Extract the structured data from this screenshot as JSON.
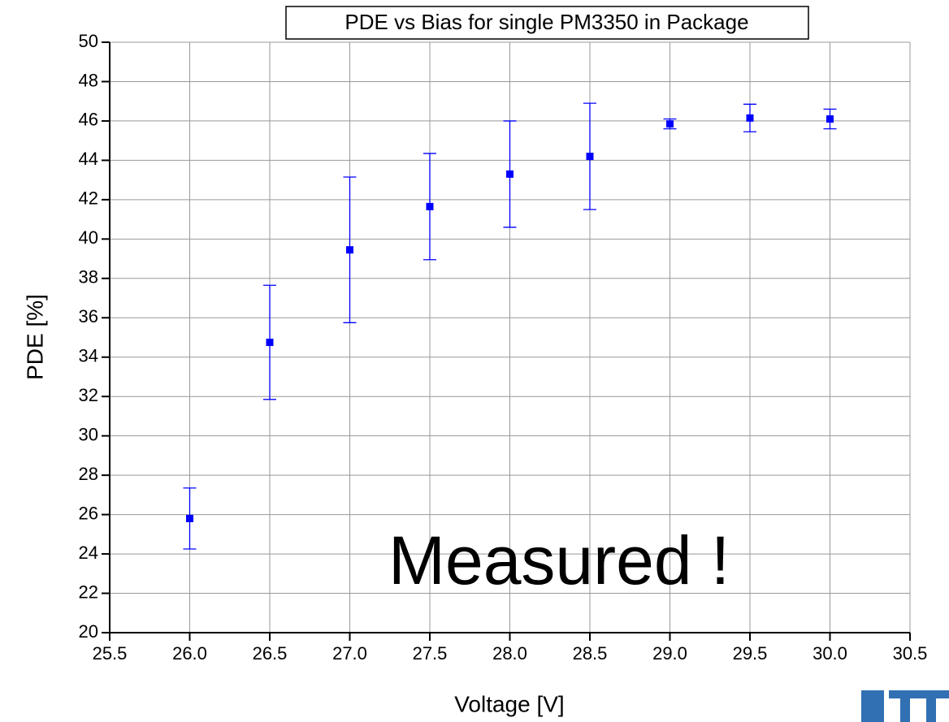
{
  "chart_data": {
    "type": "scatter",
    "title": "PDE vs Bias for single PM3350 in Package",
    "x_label": "Voltage [V]",
    "y_label": "PDE [%]",
    "annotation": "Measured !",
    "x": [
      26.0,
      26.5,
      27.0,
      27.5,
      28.0,
      28.5,
      29.0,
      29.5,
      30.0
    ],
    "series": [
      {
        "color": "#0000ff",
        "values": [
          25.8,
          34.75,
          39.45,
          41.65,
          43.3,
          44.2,
          45.85,
          46.15,
          46.1
        ],
        "errors": [
          1.55,
          2.9,
          3.7,
          2.7,
          2.7,
          2.7,
          0.25,
          0.7,
          0.5
        ]
      }
    ],
    "xlim": [
      25.5,
      30.5
    ],
    "xticks": [
      25.5,
      {
        "value": 26,
        "label": "26.0"
      },
      26.5,
      {
        "value": 27,
        "label": "27.0"
      },
      27.5,
      {
        "value": 28,
        "label": "28.0"
      },
      28.5,
      {
        "value": 29,
        "label": "29.0"
      },
      29.5,
      {
        "value": 30,
        "label": "30.0"
      },
      30.5
    ],
    "ylim": [
      20,
      50
    ],
    "yticks": [
      20,
      22,
      24,
      26,
      28,
      30,
      32,
      34,
      36,
      38,
      40,
      42,
      44,
      46,
      48,
      50
    ],
    "grid": true
  }
}
